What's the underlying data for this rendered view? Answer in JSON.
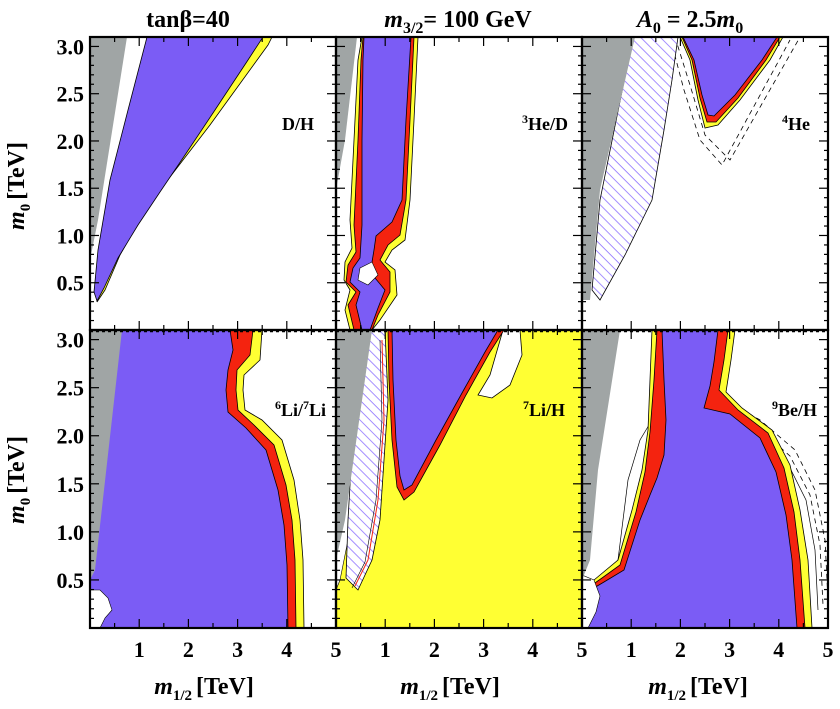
{
  "chart_data": {
    "type": "contour-region-map",
    "titles": {
      "left": "tanβ=40",
      "middle": {
        "base": "m",
        "sub": "3/2",
        "rest": "= 100 GeV"
      },
      "right": {
        "base": "A",
        "sub": "0",
        "rest": " = 2.5",
        "tail": "m",
        "tail_sub": "0"
      }
    },
    "xlabel": {
      "base": "m",
      "sub": "1/2",
      "unit": "[TeV]"
    },
    "ylabel": {
      "base": "m",
      "sub": "0",
      "unit": "[TeV]"
    },
    "xlim": [
      0,
      5
    ],
    "ylim": [
      0,
      3.1
    ],
    "xticks": [
      "1",
      "2",
      "3",
      "4",
      "5"
    ],
    "yticks": [
      "0.5",
      "1.0",
      "1.5",
      "2.0",
      "2.5",
      "3.0"
    ],
    "colors": {
      "excluded_gray": "#a0a5a5",
      "allowed_purple": "#7b5cf5",
      "band_red": "#f4230f",
      "band_yellow": "#ffff33",
      "hatch": "#8e72ff",
      "background": "#ffffff"
    },
    "panels": [
      {
        "id": "DH",
        "label": "D/H",
        "label_parts": {
          "sup": "",
          "text": "D/H"
        }
      },
      {
        "id": "He3D",
        "label": "³He/D",
        "label_parts": {
          "sup": "3",
          "text": "He/D"
        }
      },
      {
        "id": "He4",
        "label": "⁴He",
        "label_parts": {
          "sup": "4",
          "text": "He"
        }
      },
      {
        "id": "Li6Li7",
        "label": "⁶Li/⁷Li",
        "label_parts": {
          "sup": "6",
          "text": "Li/",
          "sup2": "7",
          "text2": "Li"
        }
      },
      {
        "id": "Li7H",
        "label": "⁷Li/H",
        "label_parts": {
          "sup": "7",
          "text": "Li/H"
        }
      },
      {
        "id": "Be9H",
        "label": "⁹Be/H",
        "label_parts": {
          "sup": "9",
          "text": "Be/H"
        }
      }
    ]
  }
}
